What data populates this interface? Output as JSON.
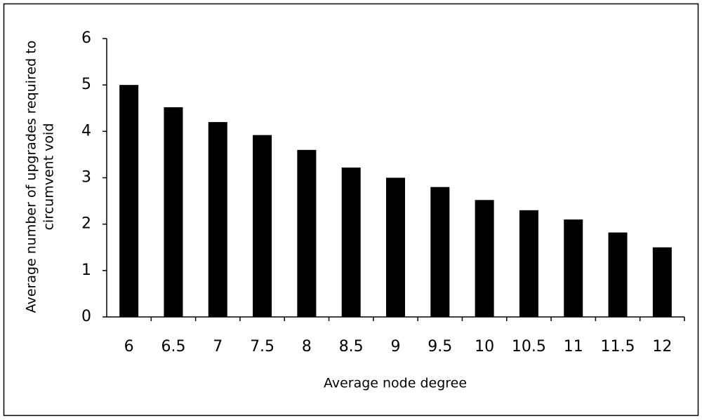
{
  "chart_data": {
    "type": "bar",
    "x_label": "Average node degree",
    "y_label": [
      "Average number of upgrades required to",
      "circumvent void"
    ],
    "categories": [
      "6",
      "6.5",
      "7",
      "7.5",
      "8",
      "8.5",
      "9",
      "9.5",
      "10",
      "10.5",
      "11",
      "11.5",
      "12"
    ],
    "values": [
      5,
      4.52,
      4.2,
      3.92,
      3.6,
      3.22,
      3.0,
      2.8,
      2.52,
      2.3,
      2.1,
      1.82,
      1.5
    ],
    "color": "#000000",
    "ylim": [
      0,
      6
    ],
    "yticks": [
      0,
      1,
      2,
      3,
      4,
      5,
      6
    ],
    "grid": false
  }
}
